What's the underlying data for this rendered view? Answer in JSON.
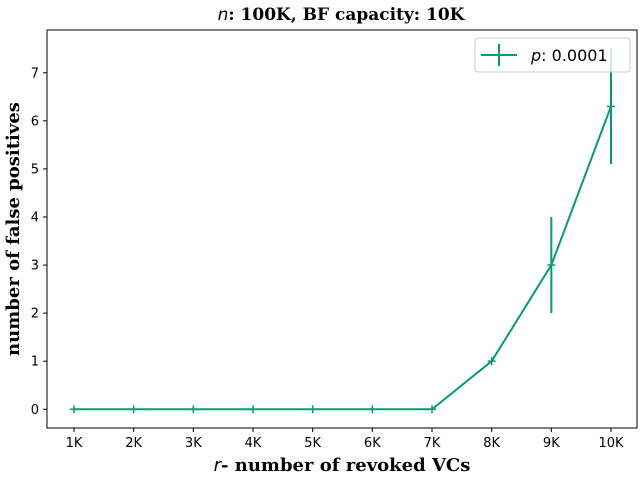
{
  "chart_data": {
    "type": "line",
    "title_var": "n",
    "title_rest": ": 100K, BF capacity: 10K",
    "xlabel_var": "r",
    "xlabel_rest": "- number of revoked VCs",
    "ylabel": "number of false positives",
    "categories": [
      "1K",
      "2K",
      "3K",
      "4K",
      "5K",
      "6K",
      "7K",
      "8K",
      "9K",
      "10K"
    ],
    "yticks": [
      0,
      1,
      2,
      3,
      4,
      5,
      6,
      7
    ],
    "ylim": [
      -0.39,
      7.89
    ],
    "grid": false,
    "legend_position": "top-right",
    "series": [
      {
        "name_var": "p",
        "name_rest": ": 0.0001",
        "color": "#009E73",
        "values": [
          0,
          0,
          0,
          0,
          0,
          0,
          0,
          1,
          3,
          6.3
        ],
        "errors": [
          0,
          0,
          0,
          0,
          0,
          0,
          0,
          0,
          1,
          1.2
        ]
      }
    ]
  }
}
